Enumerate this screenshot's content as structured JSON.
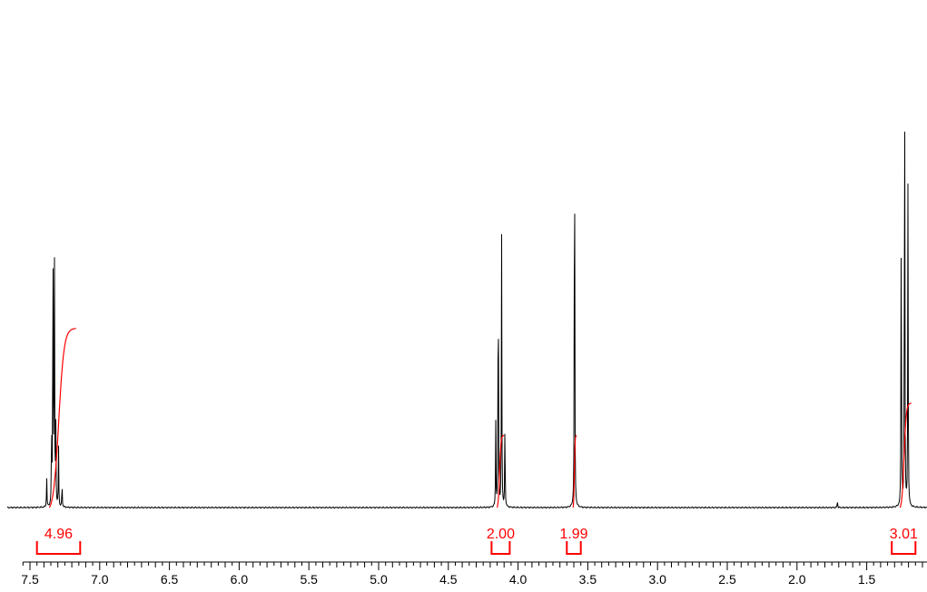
{
  "chart_data": {
    "type": "line",
    "title": "",
    "xlabel": "",
    "ylabel": "",
    "x_axis": {
      "reversed": true,
      "range": [
        7.55,
        1.05
      ],
      "major_ticks": [
        7.5,
        7.0,
        6.5,
        6.0,
        5.5,
        5.0,
        4.5,
        4.0,
        3.5,
        3.0,
        2.5,
        2.0,
        1.5
      ],
      "tick_labels": [
        "7.5",
        "7.0",
        "6.5",
        "6.0",
        "5.5",
        "5.0",
        "4.5",
        "4.0",
        "3.5",
        "3.0",
        "2.5",
        "2.0",
        "1.5"
      ],
      "minor_step": 0.05
    },
    "y_axis_visible": false,
    "grid": false,
    "colors": {
      "spectrum": "#000000",
      "integral": "#ff0000",
      "axis": "#000000"
    },
    "series": [
      {
        "peaks": [
          {
            "ppm": 7.38,
            "height": 0.06
          },
          {
            "ppm": 7.345,
            "height": 0.17
          },
          {
            "ppm": 7.335,
            "height": 0.6
          },
          {
            "ppm": 7.325,
            "height": 0.57
          },
          {
            "ppm": 7.315,
            "height": 0.17
          },
          {
            "ppm": 7.295,
            "height": 0.12
          },
          {
            "ppm": 7.27,
            "height": 0.05
          },
          {
            "ppm": 4.16,
            "height": 0.17
          },
          {
            "ppm": 4.142,
            "height": 0.57
          },
          {
            "ppm": 4.118,
            "height": 0.56
          },
          {
            "ppm": 4.094,
            "height": 0.18
          },
          {
            "ppm": 3.595,
            "height": 0.95
          },
          {
            "ppm": 1.71,
            "height": 0.015
          },
          {
            "ppm": 1.252,
            "height": 0.65
          },
          {
            "ppm": 1.228,
            "height": 1.0
          },
          {
            "ppm": 1.204,
            "height": 0.65
          }
        ]
      }
    ],
    "integrals": [
      {
        "label": "4.96",
        "from": 7.45,
        "to": 7.14,
        "start": 7.36,
        "end": 7.17,
        "curve_height": 0.36
      },
      {
        "label": "2.00",
        "from": 4.19,
        "to": 4.06,
        "start": 4.15,
        "end": 4.1,
        "curve_height": 0.145
      },
      {
        "label": "1.99",
        "from": 3.65,
        "to": 3.55,
        "start": 3.605,
        "end": 3.58,
        "curve_height": 0.145
      },
      {
        "label": "3.01",
        "from": 1.32,
        "to": 1.15,
        "start": 1.26,
        "end": 1.18,
        "curve_height": 0.21
      }
    ]
  }
}
